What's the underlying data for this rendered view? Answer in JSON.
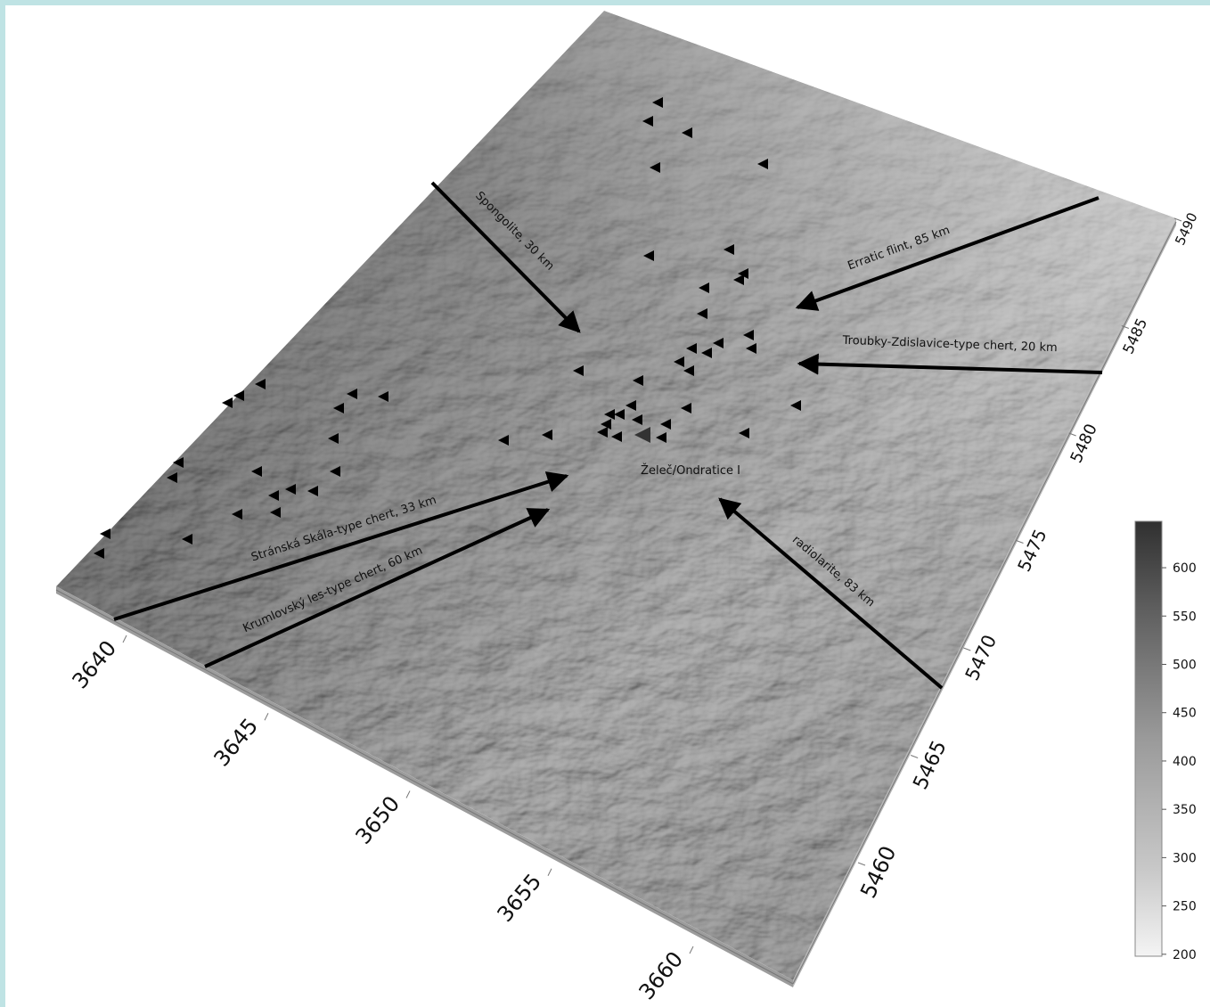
{
  "map": {
    "site_label": "Želeč/Ondratice I",
    "sources": [
      {
        "label": "Spongolite, 30 km"
      },
      {
        "label": "Erratic flint, 85 km"
      },
      {
        "label": "Troubky-Zdislavice-type chert, 20 km"
      },
      {
        "label": "Stránská Skála-type chert, 33 km"
      },
      {
        "label": "Krumlovský les-type chert, 60 km"
      },
      {
        "label": "radiolarite, 83 km"
      }
    ],
    "x_axis": {
      "ticks": [
        3640,
        3645,
        3650,
        3655,
        3660
      ]
    },
    "y_axis": {
      "ticks": [
        5460,
        5465,
        5470,
        5475,
        5480,
        5485,
        5490
      ]
    },
    "colorbar": {
      "range": [
        198,
        648
      ],
      "ticks": [
        200,
        250,
        300,
        350,
        400,
        450,
        500,
        550,
        600
      ]
    }
  }
}
